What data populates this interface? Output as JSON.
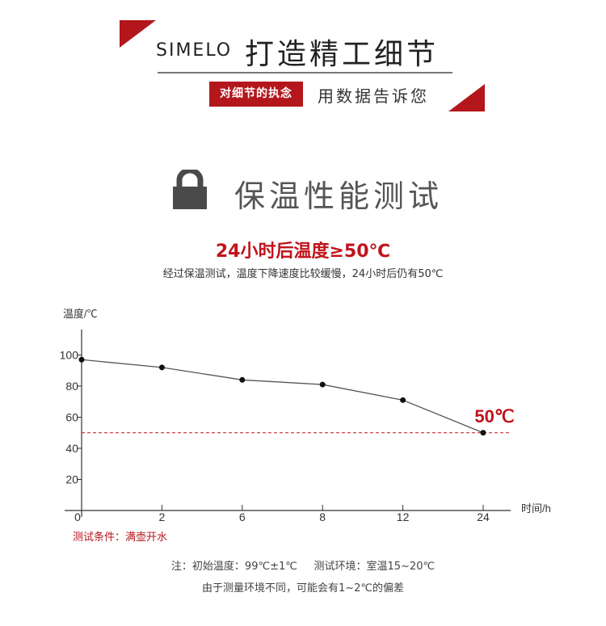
{
  "banner": {
    "brand": "SIMELO",
    "slogan": "打造精工细节",
    "tag": "对细节的执念",
    "tagline": "用数据告诉您",
    "accent_color": "#b3171c"
  },
  "section": {
    "icon": "lock-icon",
    "title": "保温性能测试",
    "headline": "24小时后温度≥50℃",
    "subtitle": "经过保温测试，温度下降速度比较缓慢，24小时后仍有50℃"
  },
  "chart_data": {
    "type": "line",
    "ylabel": "温度/℃",
    "xlabel": "时间/h",
    "categories": [
      "0",
      "2",
      "6",
      "8",
      "12",
      "24"
    ],
    "values": [
      97,
      92,
      84,
      81,
      71,
      50
    ],
    "yticks": [
      "20",
      "40",
      "60",
      "80",
      "100"
    ],
    "ylim": [
      0,
      110
    ],
    "reference_line": {
      "value": 50,
      "color": "#c0141b",
      "style": "dashed"
    },
    "annotation": "50℃",
    "line_color": "#555555",
    "grid": false
  },
  "notes": {
    "condition": "测试条件：满壶开水",
    "line1": "注：初始温度：99℃±1℃     测试环境：室温15~20℃",
    "line2": "由于测量环境不同，可能会有1~2℃的偏差"
  }
}
